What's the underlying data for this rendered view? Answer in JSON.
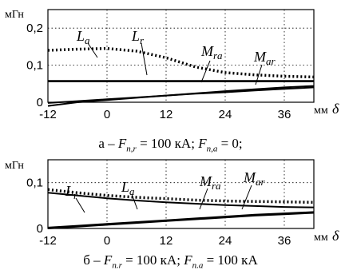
{
  "chart_data": [
    {
      "type": "line",
      "y_unit": "мГн",
      "x_unit": "мм",
      "x_symbol": "δ",
      "xlim": [
        -12,
        42
      ],
      "ylim": [
        0,
        0.25
      ],
      "xticks": [
        -12,
        0,
        12,
        24,
        36
      ],
      "xtick_labels": [
        "-12",
        "0",
        "12",
        "24",
        "36"
      ],
      "yticks": [
        0,
        0.1,
        0.2
      ],
      "ytick_labels": [
        "0",
        "0,1",
        "0,2"
      ],
      "grid": true,
      "caption": {
        "prefix": "а – ",
        "p1_sym": "F",
        "p1_sub": "n,r",
        "p1_val": " = 100 кА; ",
        "p2_sym": "F",
        "p2_sub": "n,a",
        "p2_val": " = 0;"
      },
      "series": [
        {
          "name": "La",
          "style": "dotted",
          "x": [
            -12,
            -6,
            0,
            6,
            12,
            18,
            24,
            30,
            36,
            42
          ],
          "y": [
            0.14,
            0.143,
            0.145,
            0.138,
            0.12,
            0.095,
            0.08,
            0.074,
            0.07,
            0.068
          ]
        },
        {
          "name": "Lr",
          "style": "solid",
          "x": [
            -12,
            42
          ],
          "y": [
            0.057,
            0.057
          ]
        },
        {
          "name": "Mra",
          "style": "solid",
          "x": [
            -12,
            -6,
            0,
            6,
            12,
            18,
            24,
            30,
            36,
            42
          ],
          "y": [
            -0.01,
            0.0,
            0.006,
            0.012,
            0.018,
            0.024,
            0.03,
            0.035,
            0.04,
            0.044
          ]
        },
        {
          "name": "Mar",
          "style": "solid",
          "x": [
            -12,
            -6,
            0,
            6,
            12,
            18,
            24,
            30,
            36,
            42
          ],
          "y": [
            -0.002,
            0.003,
            0.008,
            0.013,
            0.018,
            0.023,
            0.027,
            0.032,
            0.036,
            0.04
          ]
        }
      ],
      "labels": [
        {
          "main": "L",
          "sub": "a"
        },
        {
          "main": "L",
          "sub": "r"
        },
        {
          "main": "M",
          "sub": "ra"
        },
        {
          "main": "M",
          "sub": "ar"
        }
      ]
    },
    {
      "type": "line",
      "y_unit": "мГн",
      "x_unit": "мм",
      "x_symbol": "δ",
      "xlim": [
        -12,
        42
      ],
      "ylim": [
        0,
        0.15
      ],
      "xticks": [
        -12,
        0,
        12,
        24,
        36
      ],
      "xtick_labels": [
        "-12",
        "0",
        "12",
        "24",
        "36"
      ],
      "yticks": [
        0,
        0.1
      ],
      "ytick_labels": [
        "0",
        "0,1"
      ],
      "grid": true,
      "caption": {
        "prefix": "б – ",
        "p1_sym": "F",
        "p1_sub": "n.r",
        "p1_val": " = 100 кА; ",
        "p2_sym": "F",
        "p2_sub": "n.a",
        "p2_val": " = 100 кА"
      },
      "series": [
        {
          "name": "La",
          "style": "dotted",
          "x": [
            -12,
            -6,
            0,
            6,
            12,
            18,
            24,
            30,
            36,
            42
          ],
          "y": [
            0.085,
            0.078,
            0.072,
            0.068,
            0.065,
            0.062,
            0.06,
            0.059,
            0.058,
            0.057
          ]
        },
        {
          "name": "Lr",
          "style": "solid",
          "x": [
            -12,
            -6,
            0,
            6,
            12,
            18,
            24,
            30,
            36,
            42
          ],
          "y": [
            0.078,
            0.072,
            0.066,
            0.061,
            0.057,
            0.054,
            0.051,
            0.049,
            0.047,
            0.046
          ]
        },
        {
          "name": "Mra",
          "style": "solid",
          "x": [
            -12,
            -6,
            0,
            6,
            12,
            18,
            24,
            30,
            36,
            42
          ],
          "y": [
            0.0,
            0.004,
            0.008,
            0.012,
            0.016,
            0.02,
            0.024,
            0.028,
            0.031,
            0.034
          ]
        },
        {
          "name": "Mar",
          "style": "solid",
          "x": [
            -12,
            -6,
            0,
            6,
            12,
            18,
            24,
            30,
            36,
            42
          ],
          "y": [
            0.002,
            0.006,
            0.01,
            0.014,
            0.018,
            0.022,
            0.026,
            0.03,
            0.033,
            0.036
          ]
        }
      ],
      "labels": [
        {
          "main": "L",
          "sub": "r"
        },
        {
          "main": "L",
          "sub": "a"
        },
        {
          "main": "M",
          "sub": "ra"
        },
        {
          "main": "M",
          "sub": "ar"
        }
      ]
    }
  ]
}
